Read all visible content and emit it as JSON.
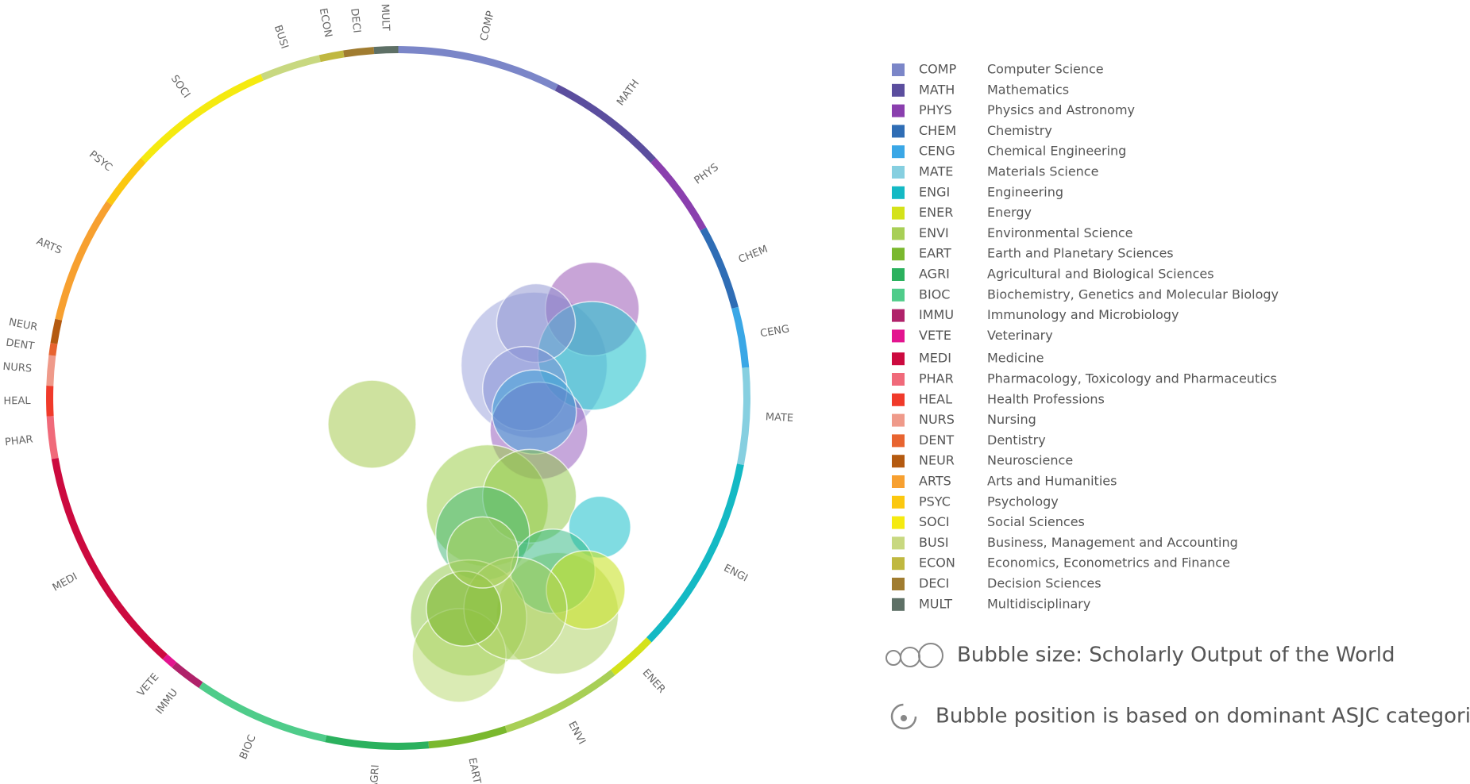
{
  "ring": {
    "labels": [
      "COMP",
      "MATH",
      "PHYS",
      "CHEM",
      "CENG",
      "MATE",
      "ENGI",
      "ENER",
      "ENVI",
      "EART",
      "AGRI",
      "BIOC",
      "IMMU",
      "VETE",
      "MEDI",
      "PHAR",
      "HEAL",
      "NURS",
      "DENT",
      "NEUR",
      "ARTS",
      "PSYC",
      "SOCI",
      "BUSI",
      "ECON",
      "DECI",
      "MULT"
    ]
  },
  "legend": {
    "items": [
      {
        "code": "COMP",
        "name": "Computer Science",
        "color": "#7b86c8"
      },
      {
        "code": "MATH",
        "name": "Mathematics",
        "color": "#5b4e9e"
      },
      {
        "code": "PHYS",
        "name": "Physics and Astronomy",
        "color": "#8a3fae"
      },
      {
        "code": "CHEM",
        "name": "Chemistry",
        "color": "#2f6db5"
      },
      {
        "code": "CENG",
        "name": "Chemical Engineering",
        "color": "#3aa7e6"
      },
      {
        "code": "MATE",
        "name": "Materials Science",
        "color": "#86cfe0"
      },
      {
        "code": "ENGI",
        "name": "Engineering",
        "color": "#14b9c4"
      },
      {
        "code": "ENER",
        "name": "Energy",
        "color": "#d4e21a"
      },
      {
        "code": "ENVI",
        "name": "Environmental Science",
        "color": "#a8cf56"
      },
      {
        "code": "EART",
        "name": "Earth and Planetary Sciences",
        "color": "#7ab82e"
      },
      {
        "code": "AGRI",
        "name": "Agricultural and Biological Sciences",
        "color": "#2bb15e"
      },
      {
        "code": "BIOC",
        "name": "Biochemistry, Genetics and Molecular Biology",
        "color": "#4fcc8a"
      },
      {
        "code": "IMMU",
        "name": "Immunology and Microbiology",
        "color": "#b0226a"
      },
      {
        "code": "VETE",
        "name": "Veterinary",
        "color": "#e3148f"
      },
      {
        "code": "MEDI",
        "name": "Medicine",
        "color": "#cc0a3f"
      },
      {
        "code": "PHAR",
        "name": "Pharmacology, Toxicology and Pharmaceutics",
        "color": "#f06a7a"
      },
      {
        "code": "HEAL",
        "name": "Health Professions",
        "color": "#f03a2a"
      },
      {
        "code": "NURS",
        "name": "Nursing",
        "color": "#ef9a8a"
      },
      {
        "code": "DENT",
        "name": "Dentistry",
        "color": "#e86430"
      },
      {
        "code": "NEUR",
        "name": "Neuroscience",
        "color": "#b45a10"
      },
      {
        "code": "ARTS",
        "name": "Arts and Humanities",
        "color": "#f7a030"
      },
      {
        "code": "PSYC",
        "name": "Psychology",
        "color": "#fbc810"
      },
      {
        "code": "SOCI",
        "name": "Social Sciences",
        "color": "#f5ea10"
      },
      {
        "code": "BUSI",
        "name": "Business, Management and Accounting",
        "color": "#c8d880"
      },
      {
        "code": "ECON",
        "name": "Economics, Econometrics and Finance",
        "color": "#c0b840"
      },
      {
        "code": "DECI",
        "name": "Decision Sciences",
        "color": "#a07c30"
      },
      {
        "code": "MULT",
        "name": "Multidisciplinary",
        "color": "#5e7066"
      }
    ]
  },
  "notes": {
    "size": "Bubble size: Scholarly Output of the World",
    "position": "Bubble position is based on dominant ASJC categories"
  }
}
